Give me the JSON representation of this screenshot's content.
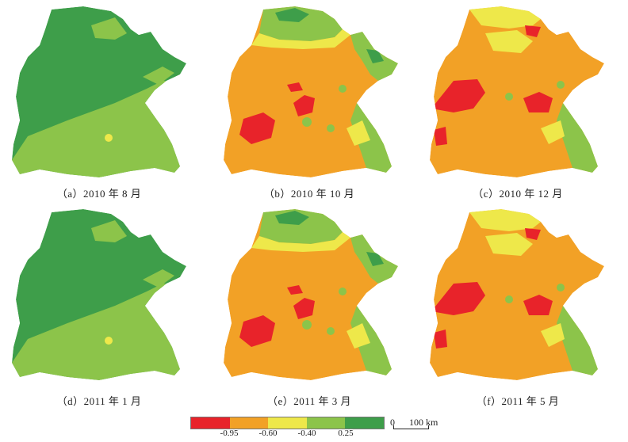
{
  "panels": [
    {
      "caption": "（a）2010 年 8 月",
      "scheme": "green"
    },
    {
      "caption": "（b）2010 年 10 月",
      "scheme": "orange"
    },
    {
      "caption": "（c）2010 年 12 月",
      "scheme": "orange-west"
    },
    {
      "caption": "（d）2011 年 1 月",
      "scheme": "green"
    },
    {
      "caption": "（e）2011 年 3 月",
      "scheme": "orange"
    },
    {
      "caption": "（f）2011 年 5 月",
      "scheme": "orange-west"
    }
  ],
  "legend": {
    "colors": [
      "#e8232a",
      "#f2a126",
      "#eee84a",
      "#8cc44a",
      "#3e9e4a"
    ],
    "labels": [
      "-0.95",
      "-0.60",
      "-0.40",
      "0.25"
    ]
  },
  "scalebar": {
    "zero": "0",
    "distance": "100 km"
  }
}
